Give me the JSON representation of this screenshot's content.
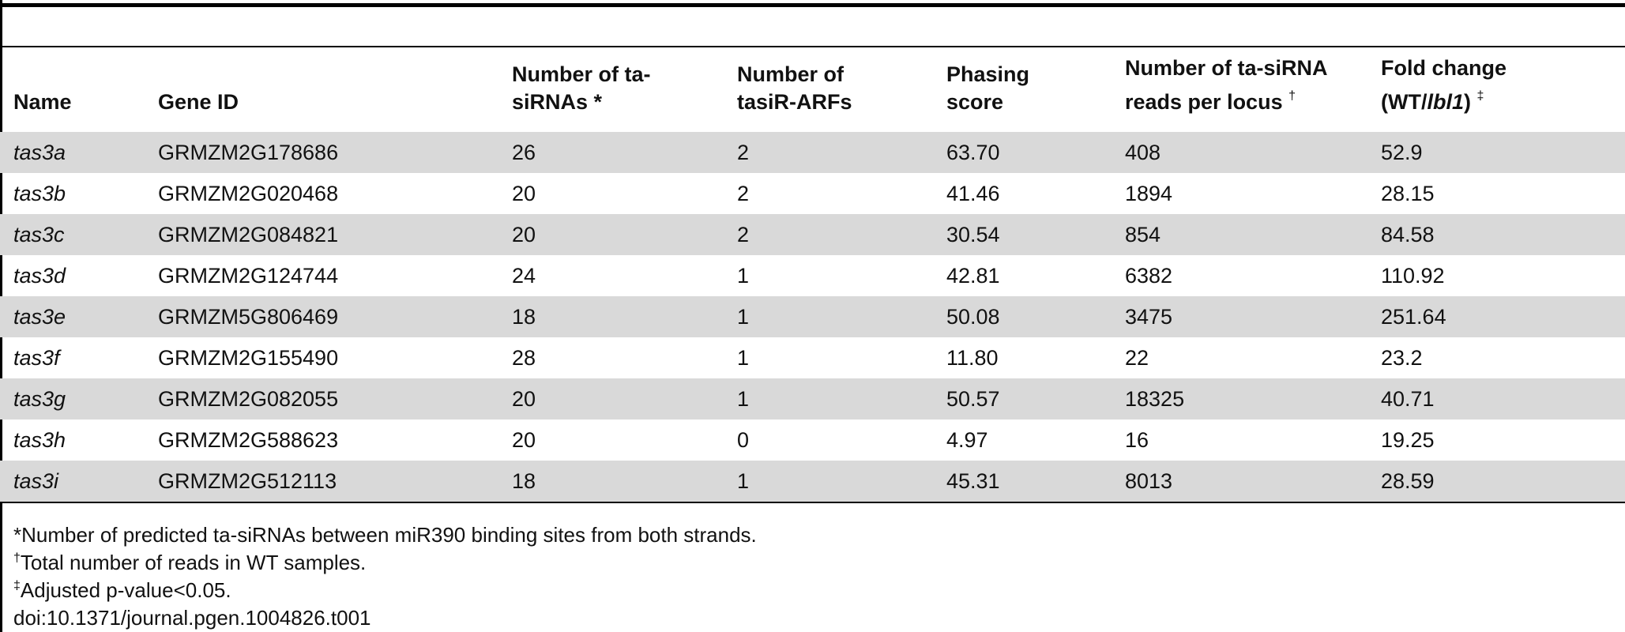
{
  "table": {
    "headers": {
      "name": "Name",
      "gene_id": "Gene ID",
      "num_tasirnas_1": "Number of ta-",
      "num_tasirnas_2": "siRNAs *",
      "num_tasirarfs_1": "Number of",
      "num_tasirarfs_2": "tasiR-ARFs",
      "phasing_1": "Phasing",
      "phasing_2": "score",
      "reads_1": "Number of ta-siRNA",
      "reads_2": "reads per locus",
      "reads_mark": "†",
      "fold_1": "Fold change",
      "fold_2a": "(WT/",
      "fold_2b": "lbl1",
      "fold_2c": ")",
      "fold_mark": "‡"
    },
    "rows": [
      {
        "name": "tas3a",
        "gene_id": "GRMZM2G178686",
        "num_tasirnas": "26",
        "num_tasirarfs": "2",
        "phasing": "63.70",
        "reads": "408",
        "fold": "52.9"
      },
      {
        "name": "tas3b",
        "gene_id": "GRMZM2G020468",
        "num_tasirnas": "20",
        "num_tasirarfs": "2",
        "phasing": "41.46",
        "reads": "1894",
        "fold": "28.15"
      },
      {
        "name": "tas3c",
        "gene_id": "GRMZM2G084821",
        "num_tasirnas": "20",
        "num_tasirarfs": "2",
        "phasing": "30.54",
        "reads": "854",
        "fold": "84.58"
      },
      {
        "name": "tas3d",
        "gene_id": "GRMZM2G124744",
        "num_tasirnas": "24",
        "num_tasirarfs": "1",
        "phasing": "42.81",
        "reads": "6382",
        "fold": "110.92"
      },
      {
        "name": "tas3e",
        "gene_id": "GRMZM5G806469",
        "num_tasirnas": "18",
        "num_tasirarfs": "1",
        "phasing": "50.08",
        "reads": "3475",
        "fold": "251.64"
      },
      {
        "name": "tas3f",
        "gene_id": "GRMZM2G155490",
        "num_tasirnas": "28",
        "num_tasirarfs": "1",
        "phasing": "11.80",
        "reads": "22",
        "fold": "23.2"
      },
      {
        "name": "tas3g",
        "gene_id": "GRMZM2G082055",
        "num_tasirnas": "20",
        "num_tasirarfs": "1",
        "phasing": "50.57",
        "reads": "18325",
        "fold": "40.71"
      },
      {
        "name": "tas3h",
        "gene_id": "GRMZM2G588623",
        "num_tasirnas": "20",
        "num_tasirarfs": "0",
        "phasing": "4.97",
        "reads": "16",
        "fold": "19.25"
      },
      {
        "name": "tas3i",
        "gene_id": "GRMZM2G512113",
        "num_tasirnas": "18",
        "num_tasirarfs": "1",
        "phasing": "45.31",
        "reads": "8013",
        "fold": "28.59"
      }
    ]
  },
  "footnotes": {
    "note1": "*Number of predicted ta-siRNAs between miR390 binding sites from both strands.",
    "note2_mark": "†",
    "note2": "Total number of reads in WT samples.",
    "note3_mark": "‡",
    "note3": "Adjusted p-value<0.05.",
    "doi": "doi:10.1371/journal.pgen.1004826.t001"
  }
}
